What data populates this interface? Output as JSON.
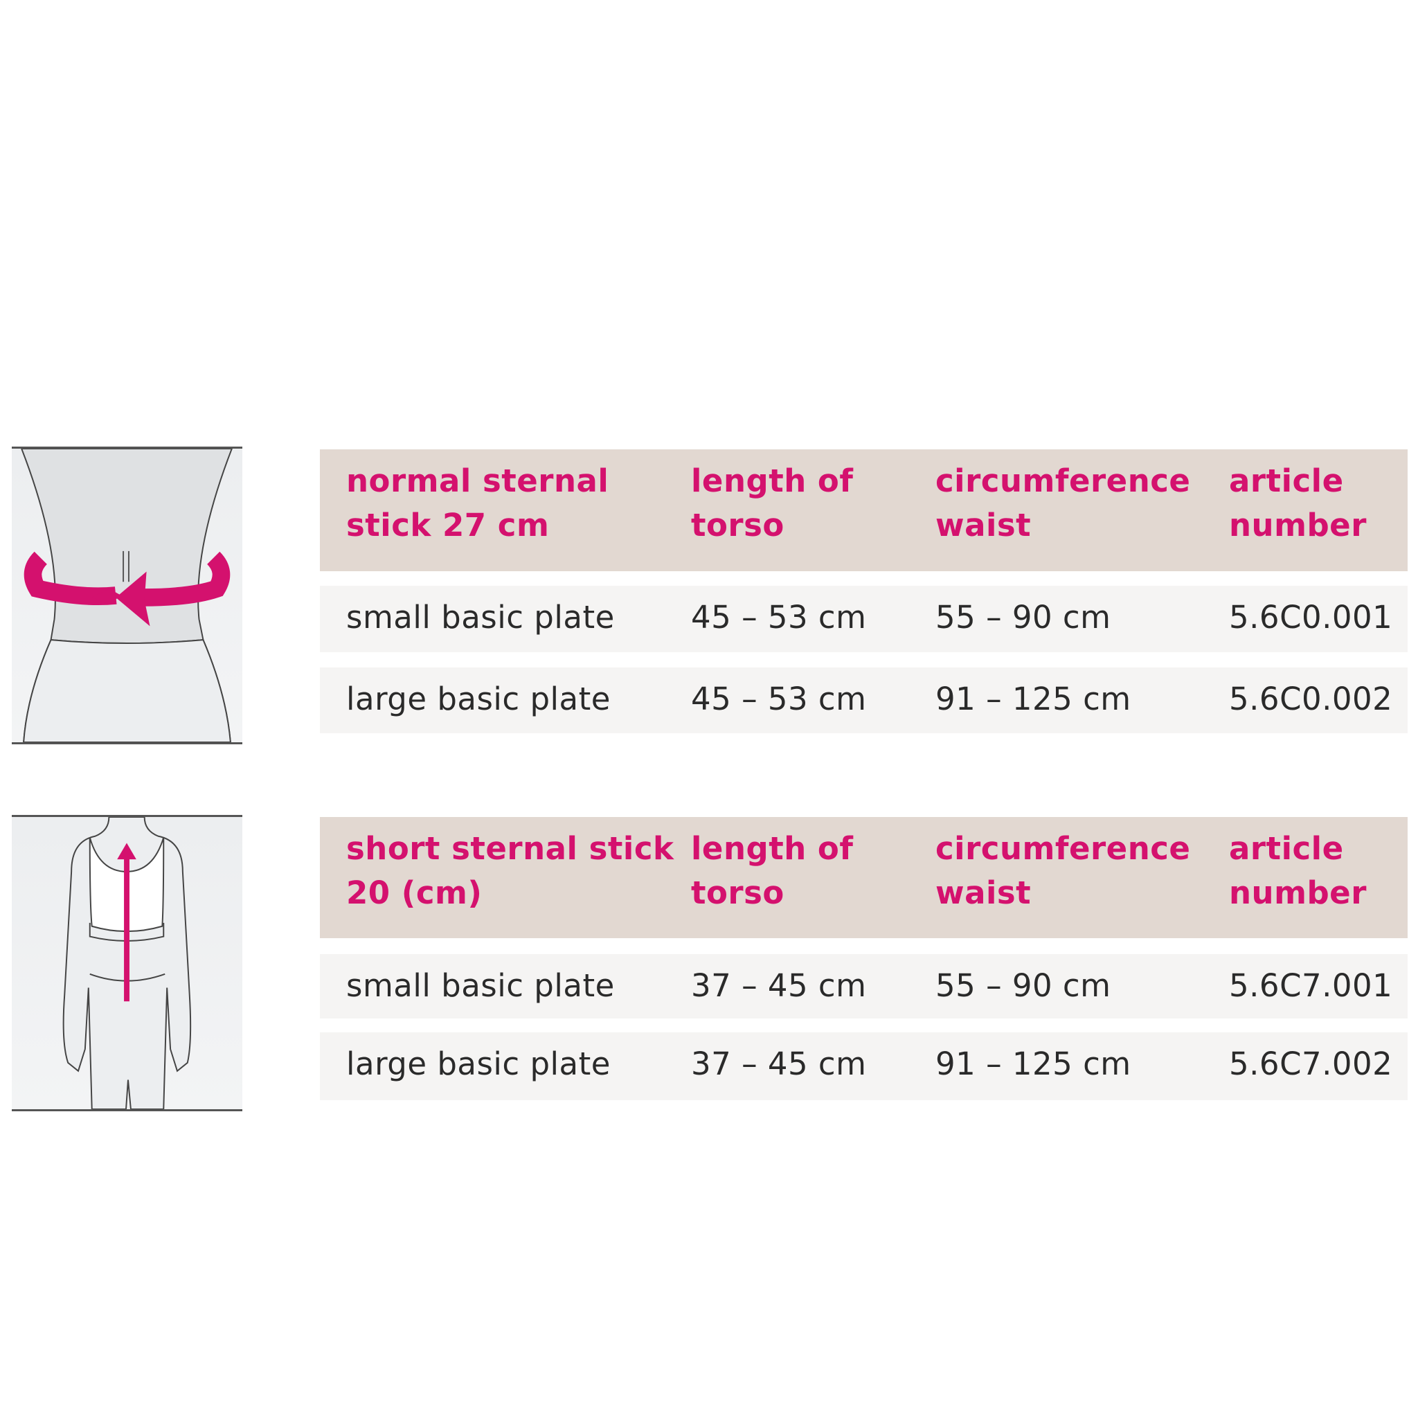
{
  "accent_color": "#d4116e",
  "header_bg": "#e2d8d1",
  "row_bg": "#f5f4f3",
  "tables": [
    {
      "illustration_icon": "waist-circumference-measure-icon",
      "headers": [
        "normal sternal\nstick 27 cm",
        "length of\ntorso",
        "circumference\nwaist",
        "article\nnumber"
      ],
      "rows": [
        [
          "small basic plate",
          "45 – 53 cm",
          "55 – 90 cm",
          "5.6C0.001"
        ],
        [
          "large basic plate",
          "45 – 53 cm",
          "91 – 125 cm",
          "5.6C0.002"
        ]
      ]
    },
    {
      "illustration_icon": "torso-length-measure-icon",
      "headers": [
        "short sternal stick\n20 (cm)",
        "length of\ntorso",
        "circumference\nwaist",
        "article\nnumber"
      ],
      "rows": [
        [
          "small basic plate",
          "37 – 45 cm",
          "55 – 90 cm",
          "5.6C7.001"
        ],
        [
          "large basic plate",
          "37 – 45 cm",
          "91 – 125 cm",
          "5.6C7.002"
        ]
      ]
    }
  ]
}
